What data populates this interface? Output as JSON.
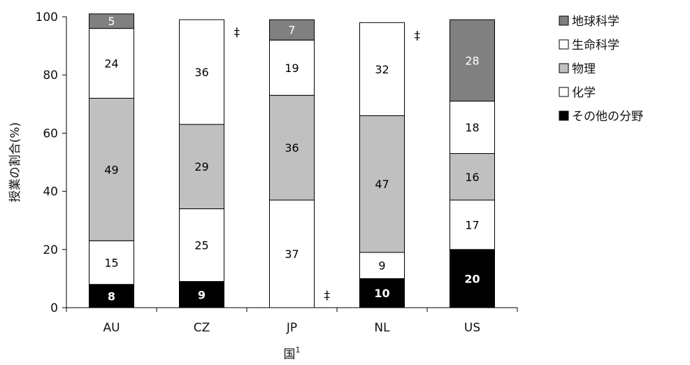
{
  "chart_data": {
    "type": "bar",
    "stacked": true,
    "categories": [
      "AU",
      "CZ",
      "JP",
      "NL",
      "US"
    ],
    "series": [
      {
        "name": "その他の分野",
        "color": "#000000",
        "label_color": "#ffffff",
        "values": [
          8,
          9,
          null,
          10,
          20
        ]
      },
      {
        "name": "化学",
        "color": "#ffffff",
        "label_color": "#000000",
        "values": [
          15,
          25,
          37,
          9,
          17
        ]
      },
      {
        "name": "物理",
        "color": "#c0c0c0",
        "label_color": "#000000",
        "values": [
          49,
          29,
          36,
          47,
          16
        ]
      },
      {
        "name": "生命科学",
        "color": "#ffffff",
        "label_color": "#000000",
        "values": [
          24,
          36,
          19,
          32,
          18
        ]
      },
      {
        "name": "地球科学",
        "color": "#808080",
        "label_color": "#ffffff",
        "values": [
          5,
          null,
          7,
          null,
          28
        ]
      }
    ],
    "annotations": [
      {
        "category": "CZ",
        "text": "‡",
        "at": 99
      },
      {
        "category": "JP",
        "text": "‡",
        "at": 0
      },
      {
        "category": "NL",
        "text": "‡",
        "at": 98
      }
    ],
    "legend_order": [
      "地球科学",
      "生命科学",
      "物理",
      "化学",
      "その他の分野"
    ],
    "legend_position": "right",
    "xlabel": "国",
    "xlabel_superscript": "1",
    "ylabel": "授業の割合(%)",
    "ylim": [
      0,
      100
    ],
    "yticks": [
      0,
      20,
      40,
      60,
      80,
      100
    ],
    "grid": false
  }
}
